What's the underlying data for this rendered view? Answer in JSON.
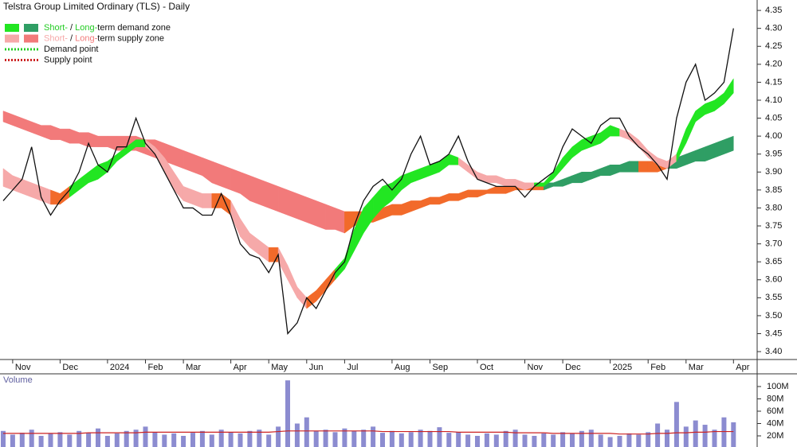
{
  "chart_data": [
    {
      "type": "line",
      "title": "Telstra Group Limited Ordinary (TLS) - Daily",
      "categories": [
        null,
        "Nov",
        null,
        null,
        null,
        null,
        "Dec",
        null,
        null,
        null,
        null,
        "2024",
        null,
        null,
        null,
        "Feb",
        null,
        null,
        null,
        "Mar",
        null,
        null,
        null,
        null,
        "Apr",
        null,
        null,
        null,
        "May",
        null,
        null,
        null,
        "Jun",
        null,
        null,
        null,
        "Jul",
        null,
        null,
        null,
        null,
        "Aug",
        null,
        null,
        null,
        "Sep",
        null,
        null,
        null,
        null,
        "Oct",
        null,
        null,
        null,
        null,
        "Nov",
        null,
        null,
        null,
        "Dec",
        null,
        null,
        null,
        null,
        "2025",
        null,
        null,
        null,
        "Feb",
        null,
        null,
        null,
        "Mar",
        null,
        null,
        null,
        null,
        "Apr"
      ],
      "values": [
        3.82,
        3.85,
        3.88,
        3.97,
        3.83,
        3.78,
        3.82,
        3.85,
        3.9,
        3.98,
        3.92,
        3.9,
        3.97,
        3.97,
        4.05,
        3.98,
        3.95,
        3.9,
        3.85,
        3.8,
        3.8,
        3.78,
        3.78,
        3.84,
        3.78,
        3.7,
        3.67,
        3.66,
        3.62,
        3.67,
        3.45,
        3.48,
        3.55,
        3.52,
        3.57,
        3.62,
        3.65,
        3.75,
        3.82,
        3.86,
        3.88,
        3.85,
        3.88,
        3.95,
        4.0,
        3.92,
        3.93,
        3.95,
        4.0,
        3.93,
        3.88,
        3.87,
        3.86,
        3.86,
        3.86,
        3.83,
        3.86,
        3.88,
        3.9,
        3.97,
        4.02,
        4.0,
        3.98,
        4.03,
        4.05,
        4.05,
        4.0,
        3.97,
        3.95,
        3.92,
        3.88,
        4.05,
        4.15,
        4.2,
        4.1,
        4.12,
        4.15,
        4.3
      ],
      "color": "#111111",
      "bands": [
        {
          "upper": [
            4.07,
            4.06,
            4.05,
            4.04,
            4.03,
            4.03,
            4.02,
            4.02,
            4.01,
            4.01,
            4.0,
            4.0,
            4.0,
            4.0,
            4.0,
            3.99,
            3.99,
            3.98,
            3.97,
            3.96,
            3.95,
            3.94,
            3.93,
            3.92,
            3.91,
            3.9,
            3.89,
            3.88,
            3.87,
            3.86,
            3.85,
            3.84,
            3.83,
            3.82,
            3.81,
            3.8,
            3.79,
            3.79,
            3.79,
            3.8,
            3.8,
            3.81,
            3.81,
            3.82,
            3.82,
            3.83,
            3.83,
            3.84,
            3.84,
            3.85,
            3.85,
            3.85,
            3.86,
            3.86,
            3.86,
            3.86,
            3.86,
            3.87,
            3.87,
            3.88,
            3.89,
            3.9,
            3.9,
            3.91,
            3.92,
            3.92,
            3.93,
            3.93,
            3.93,
            3.93,
            3.93,
            3.94,
            3.95,
            3.96,
            3.97,
            3.98,
            3.99,
            4.0
          ],
          "lower": [
            4.04,
            4.03,
            4.02,
            4.01,
            4.0,
            3.99,
            3.99,
            3.98,
            3.98,
            3.97,
            3.97,
            3.97,
            3.96,
            3.96,
            3.96,
            3.95,
            3.94,
            3.93,
            3.92,
            3.91,
            3.9,
            3.89,
            3.87,
            3.86,
            3.85,
            3.84,
            3.82,
            3.81,
            3.8,
            3.79,
            3.78,
            3.77,
            3.76,
            3.75,
            3.74,
            3.74,
            3.73,
            3.75,
            3.76,
            3.76,
            3.77,
            3.78,
            3.78,
            3.79,
            3.8,
            3.81,
            3.81,
            3.82,
            3.82,
            3.83,
            3.83,
            3.84,
            3.84,
            3.84,
            3.85,
            3.85,
            3.85,
            3.85,
            3.86,
            3.86,
            3.87,
            3.87,
            3.88,
            3.89,
            3.89,
            3.9,
            3.9,
            3.9,
            3.9,
            3.9,
            3.91,
            3.91,
            3.92,
            3.93,
            3.93,
            3.94,
            3.95,
            3.96
          ],
          "colors": [
            "#f27a7a",
            "#f27a7a",
            "#f27a7a",
            "#f27a7a",
            "#f27a7a",
            "#f27a7a",
            "#f27a7a",
            "#f27a7a",
            "#f27a7a",
            "#f27a7a",
            "#f27a7a",
            "#f27a7a",
            "#f27a7a",
            "#f27a7a",
            "#f27a7a",
            "#f27a7a",
            "#f27a7a",
            "#f27a7a",
            "#f27a7a",
            "#f27a7a",
            "#f27a7a",
            "#f27a7a",
            "#f27a7a",
            "#f27a7a",
            "#f27a7a",
            "#f27a7a",
            "#f27a7a",
            "#f27a7a",
            "#f27a7a",
            "#f27a7a",
            "#f27a7a",
            "#f27a7a",
            "#f27a7a",
            "#f27a7a",
            "#f27a7a",
            "#f27a7a",
            "#f27a7a",
            "#f26a2a",
            "#f26a2a",
            "#f26a2a",
            "#f26a2a",
            "#f26a2a",
            "#f26a2a",
            "#f26a2a",
            "#f26a2a",
            "#f26a2a",
            "#f26a2a",
            "#f26a2a",
            "#f26a2a",
            "#f26a2a",
            "#f26a2a",
            "#f26a2a",
            "#f26a2a",
            "#f26a2a",
            "#f26a2a",
            "#f26a2a",
            "#f26a2a",
            "#f26a2a",
            "#2f9e64",
            "#2f9e64",
            "#2f9e64",
            "#2f9e64",
            "#2f9e64",
            "#2f9e64",
            "#2f9e64",
            "#2f9e64",
            "#2f9e64",
            "#2f9e64",
            "#f26a2a",
            "#f26a2a",
            "#f26a2a",
            "#2f9e64",
            "#2f9e64",
            "#2f9e64",
            "#2f9e64",
            "#2f9e64",
            "#2f9e64",
            "#2f9e64"
          ]
        },
        {
          "upper": [
            3.91,
            3.89,
            3.88,
            3.87,
            3.86,
            3.85,
            3.84,
            3.86,
            3.88,
            3.9,
            3.92,
            3.93,
            3.95,
            3.97,
            3.99,
            3.99,
            3.97,
            3.94,
            3.9,
            3.86,
            3.85,
            3.84,
            3.84,
            3.84,
            3.82,
            3.77,
            3.73,
            3.71,
            3.69,
            3.69,
            3.64,
            3.58,
            3.55,
            3.57,
            3.6,
            3.63,
            3.66,
            3.74,
            3.8,
            3.83,
            3.86,
            3.87,
            3.89,
            3.9,
            3.91,
            3.92,
            3.93,
            3.95,
            3.94,
            3.92,
            3.9,
            3.89,
            3.89,
            3.88,
            3.88,
            3.87,
            3.87,
            3.87,
            3.9,
            3.94,
            3.97,
            3.99,
            4.0,
            4.01,
            4.03,
            4.02,
            4.01,
            3.99,
            3.96,
            3.94,
            3.93,
            3.95,
            4.02,
            4.07,
            4.09,
            4.1,
            4.12,
            4.16
          ],
          "lower": [
            3.86,
            3.85,
            3.84,
            3.83,
            3.82,
            3.81,
            3.81,
            3.83,
            3.85,
            3.87,
            3.88,
            3.9,
            3.93,
            3.95,
            3.97,
            3.97,
            3.95,
            3.9,
            3.85,
            3.82,
            3.81,
            3.8,
            3.8,
            3.8,
            3.78,
            3.72,
            3.69,
            3.67,
            3.65,
            3.65,
            3.6,
            3.55,
            3.52,
            3.54,
            3.57,
            3.6,
            3.63,
            3.68,
            3.73,
            3.77,
            3.8,
            3.82,
            3.85,
            3.87,
            3.88,
            3.89,
            3.9,
            3.92,
            3.92,
            3.9,
            3.88,
            3.87,
            3.87,
            3.86,
            3.86,
            3.85,
            3.86,
            3.86,
            3.88,
            3.91,
            3.94,
            3.96,
            3.97,
            3.98,
            4.0,
            4.0,
            3.99,
            3.97,
            3.94,
            3.92,
            3.91,
            3.93,
            3.98,
            4.04,
            4.06,
            4.07,
            4.09,
            4.12
          ],
          "colors": [
            "#f6a9a9",
            "#f6a9a9",
            "#f6a9a9",
            "#f6a9a9",
            "#f6a9a9",
            "#f6a9a9",
            "#f26a2a",
            "#f26a2a",
            "#22e622",
            "#22e622",
            "#22e622",
            "#22e622",
            "#22e622",
            "#22e622",
            "#22e622",
            "#22e622",
            "#f6a9a9",
            "#f6a9a9",
            "#f6a9a9",
            "#f6a9a9",
            "#f6a9a9",
            "#f6a9a9",
            "#f6a9a9",
            "#f26a2a",
            "#f26a2a",
            "#f6a9a9",
            "#f6a9a9",
            "#f6a9a9",
            "#f6a9a9",
            "#f26a2a",
            "#f6a9a9",
            "#f6a9a9",
            "#f6a9a9",
            "#f26a2a",
            "#f26a2a",
            "#f26a2a",
            "#22e622",
            "#22e622",
            "#22e622",
            "#22e622",
            "#22e622",
            "#22e622",
            "#22e622",
            "#22e622",
            "#22e622",
            "#22e622",
            "#22e622",
            "#22e622",
            "#22e622",
            "#f6a9a9",
            "#f6a9a9",
            "#f6a9a9",
            "#f6a9a9",
            "#f6a9a9",
            "#f6a9a9",
            "#f6a9a9",
            "#f6a9a9",
            "#22e622",
            "#22e622",
            "#22e622",
            "#22e622",
            "#22e622",
            "#22e622",
            "#22e622",
            "#22e622",
            "#22e622",
            "#f6a9a9",
            "#f6a9a9",
            "#f6a9a9",
            "#f6a9a9",
            "#f6a9a9",
            "#f6a9a9",
            "#22e622",
            "#22e622",
            "#22e622",
            "#22e622",
            "#22e622",
            "#22e622"
          ]
        }
      ],
      "ylim": [
        3.378,
        4.379
      ],
      "yticks": [
        {
          "value": 3.4,
          "label": "3.40"
        },
        3.45,
        {
          "value": 3.5,
          "label": "3.50"
        },
        3.55,
        {
          "value": 3.6,
          "label": "3.60"
        },
        3.65,
        {
          "value": 3.7,
          "label": "3.70"
        },
        3.75,
        {
          "value": 3.8,
          "label": "3.80"
        },
        3.85,
        {
          "value": 3.9,
          "label": "3.90"
        },
        3.95,
        {
          "value": 4.0,
          "label": "4.00"
        },
        4.05,
        {
          "value": 4.1,
          "label": "4.10"
        },
        4.15,
        {
          "value": 4.2,
          "label": "4.20"
        },
        4.25,
        {
          "value": 4.3,
          "label": "4.30"
        },
        4.35
      ],
      "legend": {
        "position": "top-left",
        "items": [
          {
            "swatches": [
              "#22e622",
              "#2f9e64"
            ],
            "parts": [
              {
                "text": "Short-",
                "color": "#22cc22"
              },
              {
                "text": " / ",
                "color": "#111111"
              },
              {
                "text": "Long-",
                "color": "#22cc22"
              },
              {
                "text": "term demand zone",
                "color": "#111111"
              }
            ]
          },
          {
            "swatches": [
              "#f6a9a9",
              "#f27a7a"
            ],
            "parts": [
              {
                "text": "Short-",
                "color": "#f6a9a9"
              },
              {
                "text": " / ",
                "color": "#111111"
              },
              {
                "text": "Long-",
                "color": "#f27a7a"
              },
              {
                "text": "term supply zone",
                "color": "#111111"
              }
            ]
          },
          {
            "line": "#22cc22",
            "parts": [
              {
                "text": "Demand point",
                "color": "#111111"
              }
            ]
          },
          {
            "line": "#cc2222",
            "parts": [
              {
                "text": "Supply point",
                "color": "#111111"
              }
            ]
          }
        ]
      }
    },
    {
      "type": "bar",
      "title": "Volume",
      "values": [
        28000000,
        22000000,
        25000000,
        30000000,
        20000000,
        24000000,
        26000000,
        22000000,
        28000000,
        25000000,
        32000000,
        20000000,
        24000000,
        28000000,
        30000000,
        35000000,
        26000000,
        22000000,
        24000000,
        20000000,
        25000000,
        28000000,
        22000000,
        30000000,
        26000000,
        24000000,
        28000000,
        30000000,
        22000000,
        35000000,
        110000000,
        40000000,
        50000000,
        28000000,
        30000000,
        26000000,
        32000000,
        28000000,
        30000000,
        35000000,
        25000000,
        28000000,
        24000000,
        26000000,
        30000000,
        28000000,
        34000000,
        25000000,
        26000000,
        22000000,
        20000000,
        24000000,
        22000000,
        28000000,
        30000000,
        22000000,
        20000000,
        24000000,
        22000000,
        26000000,
        24000000,
        28000000,
        30000000,
        22000000,
        18000000,
        20000000,
        24000000,
        22000000,
        26000000,
        40000000,
        30000000,
        75000000,
        35000000,
        45000000,
        38000000,
        30000000,
        50000000,
        42000000
      ],
      "color": "#8c8cd0",
      "average": [
        24000000,
        24000000,
        24000000,
        24000000,
        24000000,
        24000000,
        24000000,
        24000000,
        24000000,
        25000000,
        25000000,
        25000000,
        25000000,
        25000000,
        25000000,
        26000000,
        26000000,
        26000000,
        26000000,
        26000000,
        26000000,
        26000000,
        26000000,
        26000000,
        26000000,
        26000000,
        26000000,
        26000000,
        26000000,
        27000000,
        28000000,
        28000000,
        28000000,
        28000000,
        28000000,
        28000000,
        28000000,
        28000000,
        28000000,
        28000000,
        27000000,
        27000000,
        27000000,
        27000000,
        27000000,
        27000000,
        27000000,
        27000000,
        26000000,
        26000000,
        26000000,
        26000000,
        26000000,
        26000000,
        25000000,
        25000000,
        25000000,
        25000000,
        24000000,
        24000000,
        24000000,
        24000000,
        24000000,
        24000000,
        24000000,
        23000000,
        23000000,
        23000000,
        23000000,
        24000000,
        24000000,
        25000000,
        25000000,
        26000000,
        26000000,
        27000000,
        27000000,
        27000000
      ],
      "average_color": "#cc2222",
      "ylim": [
        0,
        120600000
      ],
      "yticks": [
        {
          "value": 20000000,
          "label": "20M"
        },
        {
          "value": 40000000,
          "label": "40M"
        },
        {
          "value": 60000000,
          "label": "60M"
        },
        {
          "value": 80000000,
          "label": "80M"
        },
        {
          "value": 100000000,
          "label": "100M"
        }
      ]
    }
  ]
}
